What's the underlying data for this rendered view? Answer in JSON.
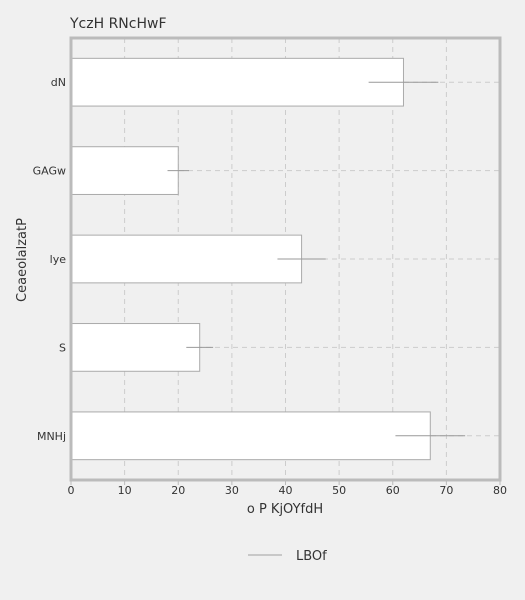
{
  "chart_data": {
    "type": "bar",
    "orientation": "horizontal",
    "title": "YczH RNcHwF",
    "xlabel": "o P  KjOYfdH",
    "ylabel": "CeaeolalzatP",
    "categories": [
      "dN",
      "GAGw",
      "lye",
      "S",
      "MNHj"
    ],
    "series": [
      {
        "name": "LBOf",
        "values": [
          62,
          20,
          43,
          24,
          67
        ],
        "error": [
          6.5,
          2,
          4.5,
          2.5,
          6.5
        ]
      }
    ],
    "xlim": [
      0,
      80
    ],
    "xticks": [
      0,
      10,
      20,
      30,
      40,
      50,
      60,
      70,
      80
    ],
    "grid": true,
    "legend_position": "bottom",
    "colors": {
      "bar_fill": "#ffffff",
      "bar_stroke": "#aaaaaa",
      "frame": "#bbbbbb",
      "grid": "#cccccc",
      "error_bar": "#999999",
      "legend_line": "#bbbbbb"
    }
  }
}
